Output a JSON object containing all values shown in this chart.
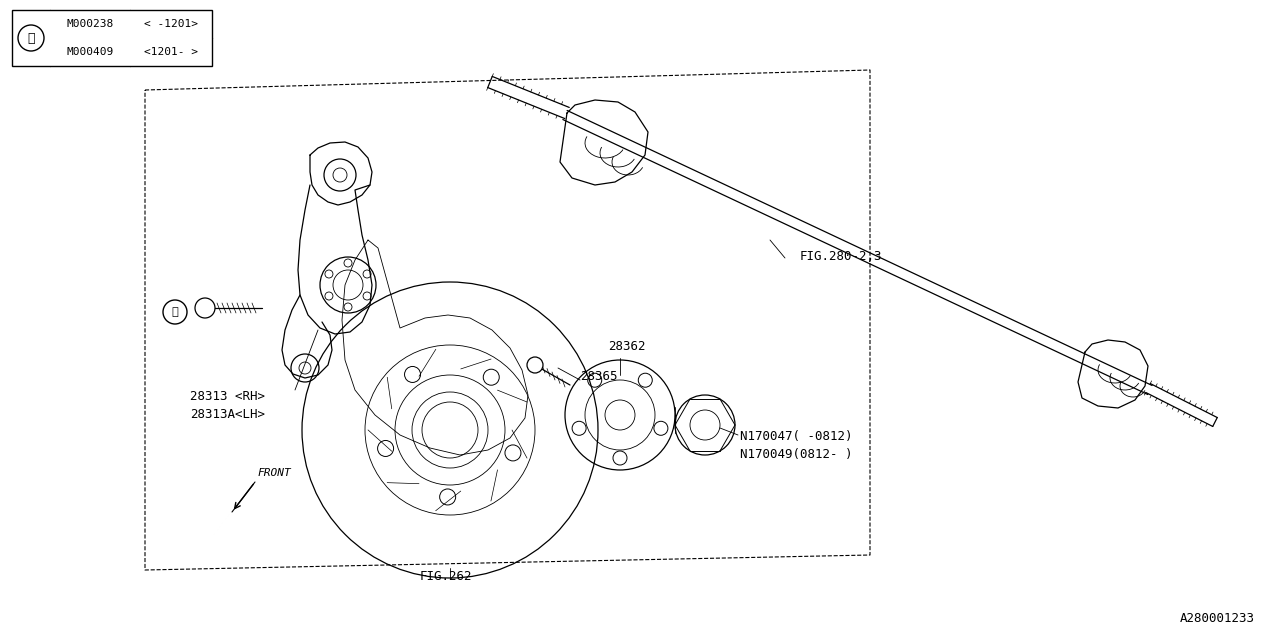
{
  "bg_color": "#ffffff",
  "line_color": "#000000",
  "fig_width": 12.8,
  "fig_height": 6.4,
  "diagram_id": "A280001233",
  "table": {
    "rows": [
      {
        "part": "M000238",
        "note": "< -1201>"
      },
      {
        "part": "M000409",
        "note": "<1201- >"
      }
    ]
  }
}
